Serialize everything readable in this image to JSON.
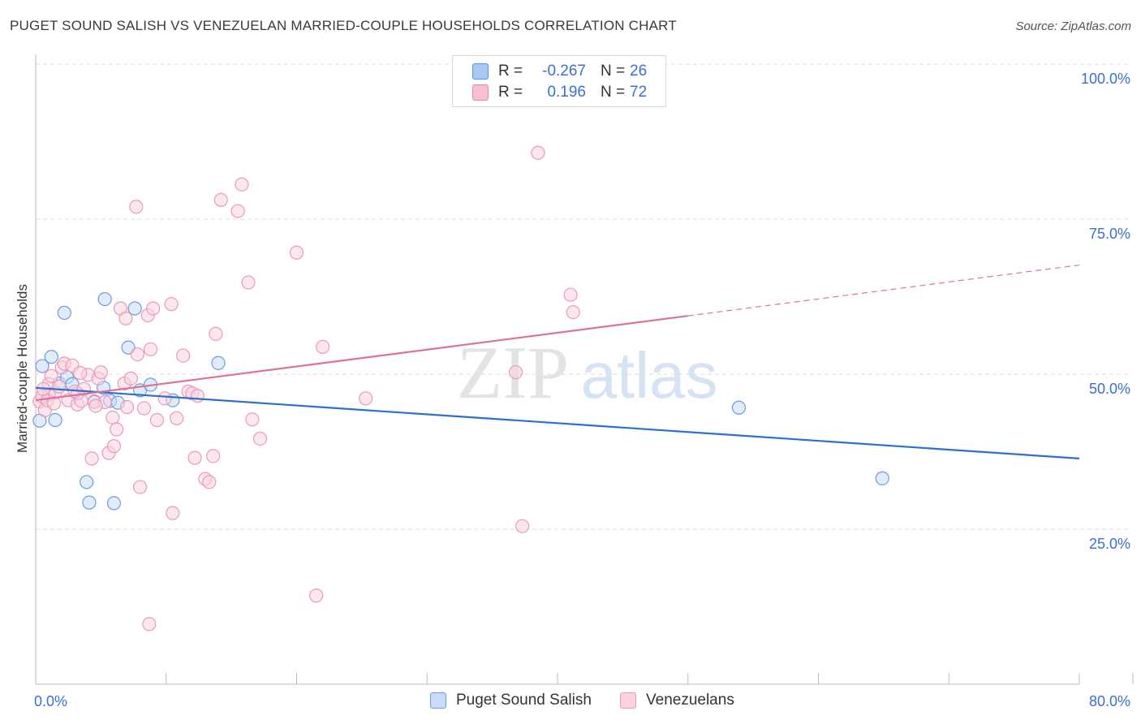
{
  "title": "PUGET SOUND SALISH VS VENEZUELAN MARRIED-COUPLE HOUSEHOLDS CORRELATION CHART",
  "source": "Source: ZipAtlas.com",
  "watermark": {
    "zip": "ZIP",
    "atlas": "atlas"
  },
  "legend": {
    "r_label": "R =",
    "n_label": "N =",
    "rows": [
      {
        "r": "-0.267",
        "n": "26",
        "fill": "#a9c8f2",
        "stroke": "#5b8fdb"
      },
      {
        "r": "0.196",
        "n": "72",
        "fill": "#f7c0d2",
        "stroke": "#e68aa8"
      }
    ]
  },
  "bottom_legend": [
    {
      "label": "Puget Sound Salish",
      "fill": "#c8dcf7",
      "stroke": "#6b9be0"
    },
    {
      "label": "Venezuelans",
      "fill": "#fbd3e0",
      "stroke": "#ea9ab5"
    }
  ],
  "chart_data": {
    "type": "scatter",
    "title": "PUGET SOUND SALISH VS VENEZUELAN MARRIED-COUPLE HOUSEHOLDS CORRELATION CHART",
    "xlabel": "",
    "ylabel": "Married-couple Households",
    "xlim": [
      0,
      80
    ],
    "ylim": [
      0,
      100
    ],
    "x_tick_labels": [
      "0.0%",
      "80.0%"
    ],
    "y_ticks": [
      25,
      50,
      75,
      100
    ],
    "y_tick_labels": [
      "25.0%",
      "50.0%",
      "75.0%",
      "100.0%"
    ],
    "grid": true,
    "series": [
      {
        "name": "Puget Sound Salish",
        "color": "#6b9be0",
        "fill": "#c8dcf7",
        "trend_color": "#2e6fcc",
        "trend": {
          "x": [
            0,
            80
          ],
          "y": [
            47.8,
            36.4
          ]
        },
        "points": [
          {
            "x": 0.3,
            "y": 42.5
          },
          {
            "x": 0.5,
            "y": 51.3
          },
          {
            "x": 1.0,
            "y": 46.7
          },
          {
            "x": 1.2,
            "y": 52.8
          },
          {
            "x": 1.5,
            "y": 42.6
          },
          {
            "x": 1.8,
            "y": 48.5
          },
          {
            "x": 2.2,
            "y": 59.9
          },
          {
            "x": 2.4,
            "y": 49.5
          },
          {
            "x": 2.8,
            "y": 48.4
          },
          {
            "x": 3.2,
            "y": 46.9
          },
          {
            "x": 3.9,
            "y": 32.6
          },
          {
            "x": 4.1,
            "y": 29.3
          },
          {
            "x": 4.5,
            "y": 45.6
          },
          {
            "x": 5.2,
            "y": 47.8
          },
          {
            "x": 5.3,
            "y": 62.1
          },
          {
            "x": 5.7,
            "y": 45.7
          },
          {
            "x": 6.0,
            "y": 29.2
          },
          {
            "x": 6.3,
            "y": 45.4
          },
          {
            "x": 7.1,
            "y": 54.3
          },
          {
            "x": 7.6,
            "y": 60.6
          },
          {
            "x": 8.0,
            "y": 47.4
          },
          {
            "x": 8.8,
            "y": 48.3
          },
          {
            "x": 10.5,
            "y": 45.8
          },
          {
            "x": 14.0,
            "y": 51.8
          },
          {
            "x": 53.9,
            "y": 44.6
          },
          {
            "x": 64.9,
            "y": 33.2
          }
        ]
      },
      {
        "name": "Venezuelans",
        "color": "#ea9ab5",
        "fill": "#fbd3e0",
        "trend_color": "#e0709a",
        "trend": {
          "x": [
            0,
            50
          ],
          "y": [
            45.8,
            59.4
          ]
        },
        "trend_dashed": {
          "x": [
            50,
            80
          ],
          "y": [
            59.4,
            67.6
          ]
        },
        "points": [
          {
            "x": 0.3,
            "y": 45.6
          },
          {
            "x": 0.5,
            "y": 46.4
          },
          {
            "x": 0.7,
            "y": 44.2
          },
          {
            "x": 0.9,
            "y": 45.8
          },
          {
            "x": 1.0,
            "y": 48.4
          },
          {
            "x": 1.2,
            "y": 49.7
          },
          {
            "x": 1.5,
            "y": 47.0
          },
          {
            "x": 1.8,
            "y": 48.0
          },
          {
            "x": 2.0,
            "y": 51.1
          },
          {
            "x": 2.2,
            "y": 51.7
          },
          {
            "x": 2.5,
            "y": 45.8
          },
          {
            "x": 2.8,
            "y": 51.4
          },
          {
            "x": 3.0,
            "y": 47.2
          },
          {
            "x": 3.2,
            "y": 45.1
          },
          {
            "x": 3.5,
            "y": 45.7
          },
          {
            "x": 3.7,
            "y": 47.6
          },
          {
            "x": 4.0,
            "y": 49.9
          },
          {
            "x": 4.3,
            "y": 36.4
          },
          {
            "x": 4.5,
            "y": 45.5
          },
          {
            "x": 4.8,
            "y": 49.3
          },
          {
            "x": 5.0,
            "y": 50.3
          },
          {
            "x": 5.3,
            "y": 45.5
          },
          {
            "x": 5.6,
            "y": 37.3
          },
          {
            "x": 5.9,
            "y": 43.0
          },
          {
            "x": 6.0,
            "y": 38.4
          },
          {
            "x": 6.2,
            "y": 41.1
          },
          {
            "x": 6.5,
            "y": 60.6
          },
          {
            "x": 6.8,
            "y": 48.5
          },
          {
            "x": 6.9,
            "y": 59.0
          },
          {
            "x": 7.0,
            "y": 44.7
          },
          {
            "x": 7.3,
            "y": 49.3
          },
          {
            "x": 7.7,
            "y": 77.0
          },
          {
            "x": 7.8,
            "y": 53.2
          },
          {
            "x": 8.0,
            "y": 31.8
          },
          {
            "x": 8.3,
            "y": 44.5
          },
          {
            "x": 8.6,
            "y": 59.5
          },
          {
            "x": 8.7,
            "y": 9.7
          },
          {
            "x": 8.8,
            "y": 54.0
          },
          {
            "x": 9.0,
            "y": 60.6
          },
          {
            "x": 9.3,
            "y": 42.6
          },
          {
            "x": 9.9,
            "y": 46.1
          },
          {
            "x": 10.4,
            "y": 61.3
          },
          {
            "x": 10.5,
            "y": 27.6
          },
          {
            "x": 10.8,
            "y": 42.9
          },
          {
            "x": 11.3,
            "y": 53.0
          },
          {
            "x": 11.7,
            "y": 47.2
          },
          {
            "x": 12.0,
            "y": 46.9
          },
          {
            "x": 12.2,
            "y": 36.5
          },
          {
            "x": 12.4,
            "y": 46.5
          },
          {
            "x": 13.0,
            "y": 33.1
          },
          {
            "x": 13.3,
            "y": 32.6
          },
          {
            "x": 13.6,
            "y": 36.8
          },
          {
            "x": 13.8,
            "y": 56.5
          },
          {
            "x": 14.2,
            "y": 78.1
          },
          {
            "x": 15.5,
            "y": 76.3
          },
          {
            "x": 15.8,
            "y": 80.6
          },
          {
            "x": 16.3,
            "y": 64.8
          },
          {
            "x": 16.6,
            "y": 42.7
          },
          {
            "x": 17.2,
            "y": 39.6
          },
          {
            "x": 20.0,
            "y": 69.6
          },
          {
            "x": 21.5,
            "y": 14.3
          },
          {
            "x": 22.0,
            "y": 54.4
          },
          {
            "x": 25.3,
            "y": 46.1
          },
          {
            "x": 36.8,
            "y": 50.3
          },
          {
            "x": 37.3,
            "y": 25.5
          },
          {
            "x": 38.5,
            "y": 85.7
          },
          {
            "x": 41.0,
            "y": 62.8
          },
          {
            "x": 41.2,
            "y": 60.0
          },
          {
            "x": 0.6,
            "y": 47.6
          },
          {
            "x": 3.4,
            "y": 50.2
          },
          {
            "x": 4.6,
            "y": 44.9
          },
          {
            "x": 1.4,
            "y": 45.3
          }
        ]
      }
    ]
  }
}
